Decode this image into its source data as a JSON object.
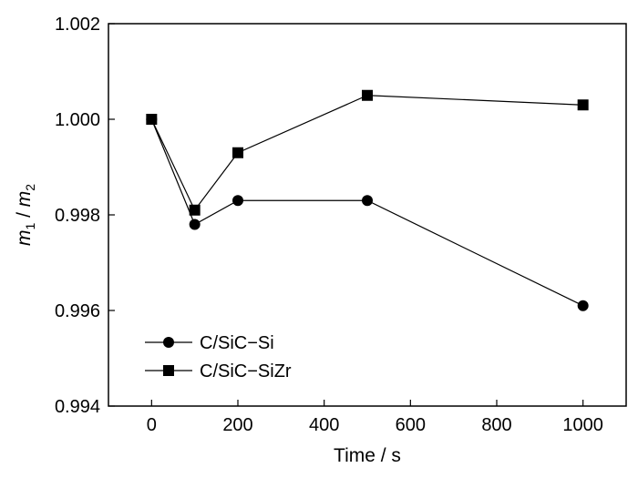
{
  "chart_data": {
    "type": "line",
    "xlabel": "Time / s",
    "ylabel": {
      "m1": "m",
      "sub1": "1",
      "sep": " / ",
      "m2": "m",
      "sub2": "2"
    },
    "xlim": [
      -100,
      1100
    ],
    "ylim": [
      0.994,
      1.002
    ],
    "x_ticks": [
      0,
      200,
      400,
      600,
      800,
      1000
    ],
    "x_tick_labels": [
      "0",
      "200",
      "400",
      "600",
      "800",
      "1000"
    ],
    "y_ticks": [
      0.994,
      0.996,
      0.998,
      1.0,
      1.002
    ],
    "y_tick_labels": [
      "0.994",
      "0.996",
      "0.998",
      "1.000",
      "1.002"
    ],
    "grid": false,
    "legend_position": "lower-left",
    "series": [
      {
        "name": "C/SiC−Si",
        "marker": "circle",
        "x": [
          0,
          100,
          200,
          500,
          1000
        ],
        "y": [
          1.0,
          0.9978,
          0.9983,
          0.9983,
          0.9961
        ]
      },
      {
        "name": "C/SiC−SiZr",
        "marker": "square",
        "x": [
          0,
          100,
          200,
          500,
          1000
        ],
        "y": [
          1.0,
          0.9981,
          0.9993,
          1.0005,
          1.0003
        ]
      }
    ]
  }
}
